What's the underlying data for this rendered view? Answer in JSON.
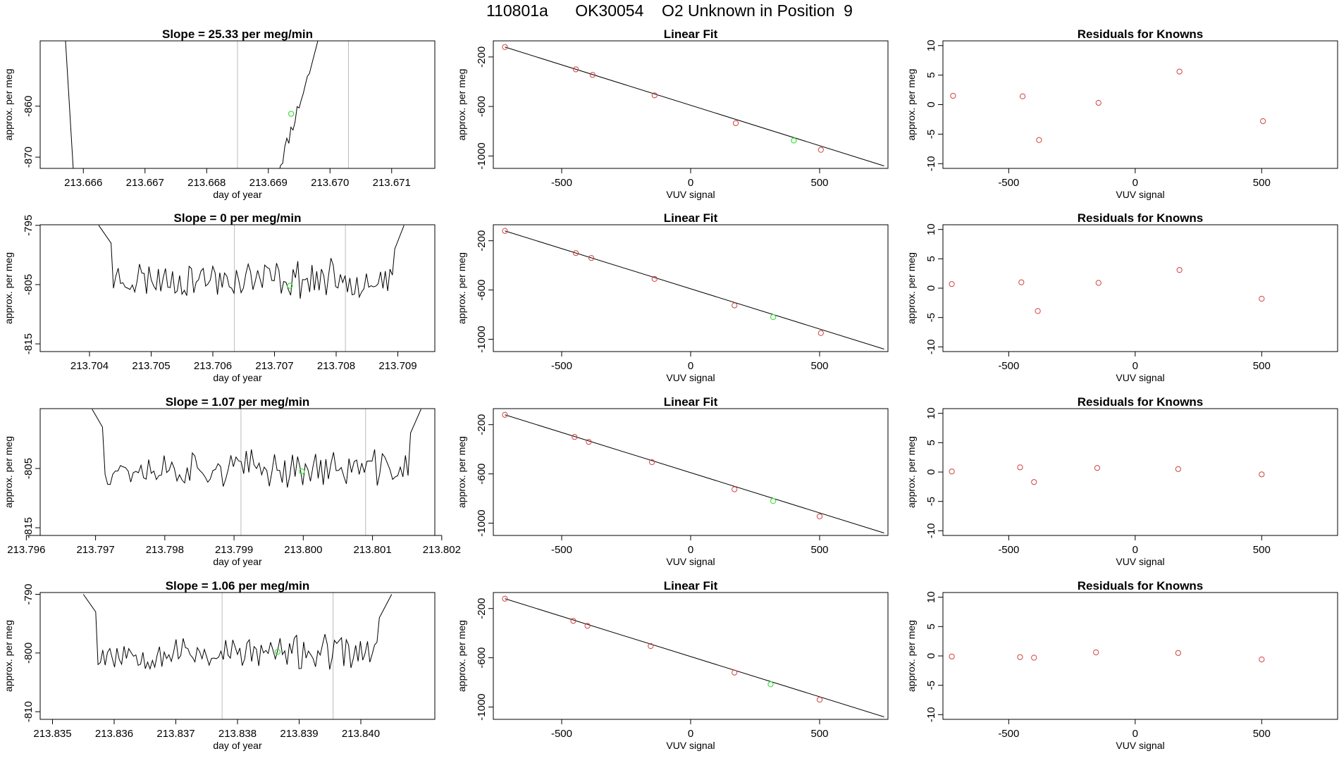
{
  "figure": {
    "title": "110801a      OK30054    O2 Unknown in Position  9"
  },
  "colors": {
    "trace": "#000000",
    "known": "#d04040",
    "unknown": "#3ee03e",
    "vline": "#bbbbbb",
    "fitline": "#000000"
  },
  "chart_data": [
    {
      "type": "line",
      "row": 1,
      "col": 1,
      "title": "Slope =  25.33  per meg/min",
      "xlabel": "day of year",
      "ylabel": "approx. per meg",
      "xlim": [
        213.6653,
        213.6717
      ],
      "ylim": [
        -872.2,
        -847.2
      ],
      "xticks": [
        213.666,
        213.667,
        213.668,
        213.669,
        213.67,
        213.671
      ],
      "xtick_labels": [
        "213.666",
        "213.667",
        "213.668",
        "213.669",
        "213.670",
        "213.671"
      ],
      "yticks": [
        -870,
        -860
      ],
      "ytick_labels": [
        "-870",
        "-860"
      ],
      "vlines": [
        213.6685,
        213.6703
      ],
      "trace_style": "ramp",
      "trace_baseline": -864,
      "trace_noise": 0,
      "trace_seed": 11,
      "trace_x": [
        213.6657,
        213.66585,
        213.6691,
        213.6694,
        213.6697,
        213.66985
      ],
      "trace_y": [
        -845,
        -875,
        -875,
        -860,
        -852,
        -845
      ],
      "unknown_point": {
        "x": 213.66937,
        "y": -861.5
      }
    },
    {
      "type": "line",
      "row": 2,
      "col": 1,
      "title": "Slope =  0  per meg/min",
      "xlabel": "day of year",
      "ylabel": "approx. per meg",
      "xlim": [
        213.7032,
        213.7096
      ],
      "ylim": [
        -816.3,
        -794.9
      ],
      "xticks": [
        213.704,
        213.705,
        213.706,
        213.707,
        213.708,
        213.709
      ],
      "xtick_labels": [
        "213.704",
        "213.705",
        "213.706",
        "213.707",
        "213.708",
        "213.709"
      ],
      "yticks": [
        -815,
        -805,
        -795
      ],
      "ytick_labels": [
        "-815",
        "-805",
        "-795"
      ],
      "vlines": [
        213.70635,
        213.70815
      ],
      "trace_style": "noise",
      "trace_baseline": -804,
      "trace_noise": 2.6,
      "trace_seed": 23,
      "trace_x": [
        213.70415,
        213.70435,
        213.70895,
        213.7091
      ],
      "trace_y": [
        -795,
        -798,
        -799,
        -795
      ],
      "unknown_point": {
        "x": 213.70725,
        "y": -805.2
      }
    },
    {
      "type": "line",
      "row": 3,
      "col": 1,
      "title": "Slope =  1.07  per meg/min",
      "xlabel": "day of year",
      "ylabel": "approx. per meg",
      "xlim": [
        213.7962,
        213.8019
      ],
      "ylim": [
        -816.3,
        -794.9
      ],
      "xticks": [
        213.796,
        213.797,
        213.798,
        213.799,
        213.8,
        213.801,
        213.802
      ],
      "xtick_labels": [
        "213.796",
        "213.797",
        "213.798",
        "213.799",
        "213.800",
        "213.801",
        "213.802"
      ],
      "yticks": [
        -815,
        -805
      ],
      "ytick_labels": [
        "-815",
        "-805"
      ],
      "vlines": [
        213.7991,
        213.8009
      ],
      "trace_style": "noise",
      "trace_baseline": -805,
      "trace_noise": 2.5,
      "trace_seed": 37,
      "trace_x": [
        213.79695,
        213.7971,
        213.80155,
        213.8017
      ],
      "trace_y": [
        -795,
        -798,
        -799,
        -795
      ],
      "unknown_point": {
        "x": 213.79998,
        "y": -805.5
      }
    },
    {
      "type": "line",
      "row": 4,
      "col": 1,
      "title": "Slope =  1.06  per meg/min",
      "xlabel": "day of year",
      "ylabel": "approx. per meg",
      "xlim": [
        213.8348,
        213.8412
      ],
      "ylim": [
        -811.3,
        -789.7
      ],
      "xticks": [
        213.835,
        213.836,
        213.837,
        213.838,
        213.839,
        213.84
      ],
      "xtick_labels": [
        "213.835",
        "213.836",
        "213.837",
        "213.838",
        "213.839",
        "213.840"
      ],
      "yticks": [
        -810,
        -800,
        -790
      ],
      "ytick_labels": [
        "-810",
        "-800",
        "-790"
      ],
      "vlines": [
        213.83775,
        213.83955
      ],
      "trace_style": "noise",
      "trace_baseline": -800,
      "trace_noise": 2.4,
      "trace_seed": 53,
      "trace_x": [
        213.8355,
        213.8357,
        213.8403,
        213.8405
      ],
      "trace_y": [
        -790,
        -793,
        -794,
        -790
      ],
      "unknown_point": {
        "x": 213.83865,
        "y": -799.8
      }
    },
    {
      "type": "scatter",
      "row": 1,
      "col": 2,
      "title": "Linear Fit",
      "xlabel": "VUV signal",
      "ylabel": "approx. per meg",
      "xlim": [
        -765,
        765
      ],
      "ylim": [
        -1100,
        -70
      ],
      "xticks": [
        -500,
        0,
        500
      ],
      "xtick_labels": [
        "-500",
        "0",
        "500"
      ],
      "yticks": [
        -1000,
        -600,
        -200
      ],
      "ytick_labels": [
        "-1000",
        "-600",
        "-200"
      ],
      "fit_line": {
        "x": [
          -720,
          750
        ],
        "y": [
          -120,
          -1080
        ]
      },
      "known_points": {
        "x": [
          -720,
          -445,
          -380,
          -140,
          175,
          505
        ],
        "y": [
          -120,
          -300,
          -345,
          -510,
          -735,
          -950
        ]
      },
      "unknown_point": {
        "x": 400,
        "y": -875
      }
    },
    {
      "type": "scatter",
      "row": 2,
      "col": 2,
      "title": "Linear Fit",
      "xlabel": "VUV signal",
      "ylabel": "approx. per meg",
      "xlim": [
        -765,
        765
      ],
      "ylim": [
        -1100,
        -70
      ],
      "xticks": [
        -500,
        0,
        500
      ],
      "xtick_labels": [
        "-500",
        "0",
        "500"
      ],
      "yticks": [
        -1000,
        -600,
        -200
      ],
      "ytick_labels": [
        "-1000",
        "-600",
        "-200"
      ],
      "fit_line": {
        "x": [
          -720,
          750
        ],
        "y": [
          -120,
          -1080
        ]
      },
      "known_points": {
        "x": [
          -720,
          -445,
          -385,
          -140,
          170,
          505
        ],
        "y": [
          -120,
          -300,
          -340,
          -510,
          -725,
          -950
        ]
      },
      "unknown_point": {
        "x": 320,
        "y": -820
      }
    },
    {
      "type": "scatter",
      "row": 3,
      "col": 2,
      "title": "Linear Fit",
      "xlabel": "VUV signal",
      "ylabel": "approx. per meg",
      "xlim": [
        -765,
        765
      ],
      "ylim": [
        -1100,
        -70
      ],
      "xticks": [
        -500,
        0,
        500
      ],
      "xtick_labels": [
        "-500",
        "0",
        "500"
      ],
      "yticks": [
        -1000,
        -600,
        -200
      ],
      "ytick_labels": [
        "-1000",
        "-600",
        "-200"
      ],
      "fit_line": {
        "x": [
          -720,
          750
        ],
        "y": [
          -120,
          -1080
        ]
      },
      "known_points": {
        "x": [
          -720,
          -450,
          -395,
          -150,
          170,
          500
        ],
        "y": [
          -120,
          -300,
          -340,
          -505,
          -725,
          -945
        ]
      },
      "unknown_point": {
        "x": 320,
        "y": -820
      }
    },
    {
      "type": "scatter",
      "row": 4,
      "col": 2,
      "title": "Linear Fit",
      "xlabel": "VUV signal",
      "ylabel": "approx. per meg",
      "xlim": [
        -765,
        765
      ],
      "ylim": [
        -1100,
        -70
      ],
      "xticks": [
        -500,
        0,
        500
      ],
      "xtick_labels": [
        "-500",
        "0",
        "500"
      ],
      "yticks": [
        -1000,
        -600,
        -200
      ],
      "ytick_labels": [
        "-1000",
        "-600",
        "-200"
      ],
      "fit_line": {
        "x": [
          -720,
          750
        ],
        "y": [
          -120,
          -1080
        ]
      },
      "known_points": {
        "x": [
          -720,
          -455,
          -400,
          -155,
          170,
          500
        ],
        "y": [
          -120,
          -300,
          -340,
          -505,
          -720,
          -940
        ]
      },
      "unknown_point": {
        "x": 310,
        "y": -815
      }
    },
    {
      "type": "scatter",
      "row": 1,
      "col": 3,
      "title": "Residuals for Knowns",
      "xlabel": "VUV signal",
      "ylabel": "approx. per meg",
      "xlim": [
        -760,
        800
      ],
      "ylim": [
        -10.8,
        10.8
      ],
      "xticks": [
        -500,
        0,
        500
      ],
      "xtick_labels": [
        "-500",
        "0",
        "500"
      ],
      "yticks": [
        -10,
        -5,
        0,
        5,
        10
      ],
      "ytick_labels": [
        "-10",
        "-5",
        "0",
        "5",
        "10"
      ],
      "known_points": {
        "x": [
          -720,
          -445,
          -380,
          -145,
          175,
          505
        ],
        "y": [
          1.5,
          1.4,
          -6.0,
          0.3,
          5.6,
          -2.8
        ]
      }
    },
    {
      "type": "scatter",
      "row": 2,
      "col": 3,
      "title": "Residuals for Knowns",
      "xlabel": "VUV signal",
      "ylabel": "approx. per meg",
      "xlim": [
        -760,
        800
      ],
      "ylim": [
        -10.8,
        10.8
      ],
      "xticks": [
        -500,
        0,
        500
      ],
      "xtick_labels": [
        "-500",
        "0",
        "500"
      ],
      "yticks": [
        -10,
        -5,
        0,
        5,
        10
      ],
      "ytick_labels": [
        "-10",
        "-5",
        "0",
        "5",
        "10"
      ],
      "known_points": {
        "x": [
          -725,
          -450,
          -385,
          -145,
          175,
          500
        ],
        "y": [
          0.7,
          1.0,
          -3.9,
          0.9,
          3.1,
          -1.8
        ]
      }
    },
    {
      "type": "scatter",
      "row": 3,
      "col": 3,
      "title": "Residuals for Knowns",
      "xlabel": "VUV signal",
      "ylabel": "approx. per meg",
      "xlim": [
        -760,
        800
      ],
      "ylim": [
        -10.8,
        10.8
      ],
      "xticks": [
        -500,
        0,
        500
      ],
      "xtick_labels": [
        "-500",
        "0",
        "500"
      ],
      "yticks": [
        -10,
        -5,
        0,
        5,
        10
      ],
      "ytick_labels": [
        "-10",
        "-5",
        "0",
        "5",
        "10"
      ],
      "known_points": {
        "x": [
          -725,
          -455,
          -400,
          -150,
          170,
          500
        ],
        "y": [
          0.1,
          0.8,
          -1.7,
          0.7,
          0.5,
          -0.4
        ]
      }
    },
    {
      "type": "scatter",
      "row": 4,
      "col": 3,
      "title": "Residuals for Knowns",
      "xlabel": "VUV signal",
      "ylabel": "approx. per meg",
      "xlim": [
        -760,
        800
      ],
      "ylim": [
        -10.8,
        10.8
      ],
      "xticks": [
        -500,
        0,
        500
      ],
      "xtick_labels": [
        "-500",
        "0",
        "500"
      ],
      "yticks": [
        -10,
        -5,
        0,
        5,
        10
      ],
      "ytick_labels": [
        "-10",
        "-5",
        "0",
        "5",
        "10"
      ],
      "known_points": {
        "x": [
          -725,
          -455,
          -400,
          -155,
          170,
          500
        ],
        "y": [
          -0.1,
          -0.2,
          -0.3,
          0.6,
          0.5,
          -0.6
        ]
      }
    }
  ]
}
